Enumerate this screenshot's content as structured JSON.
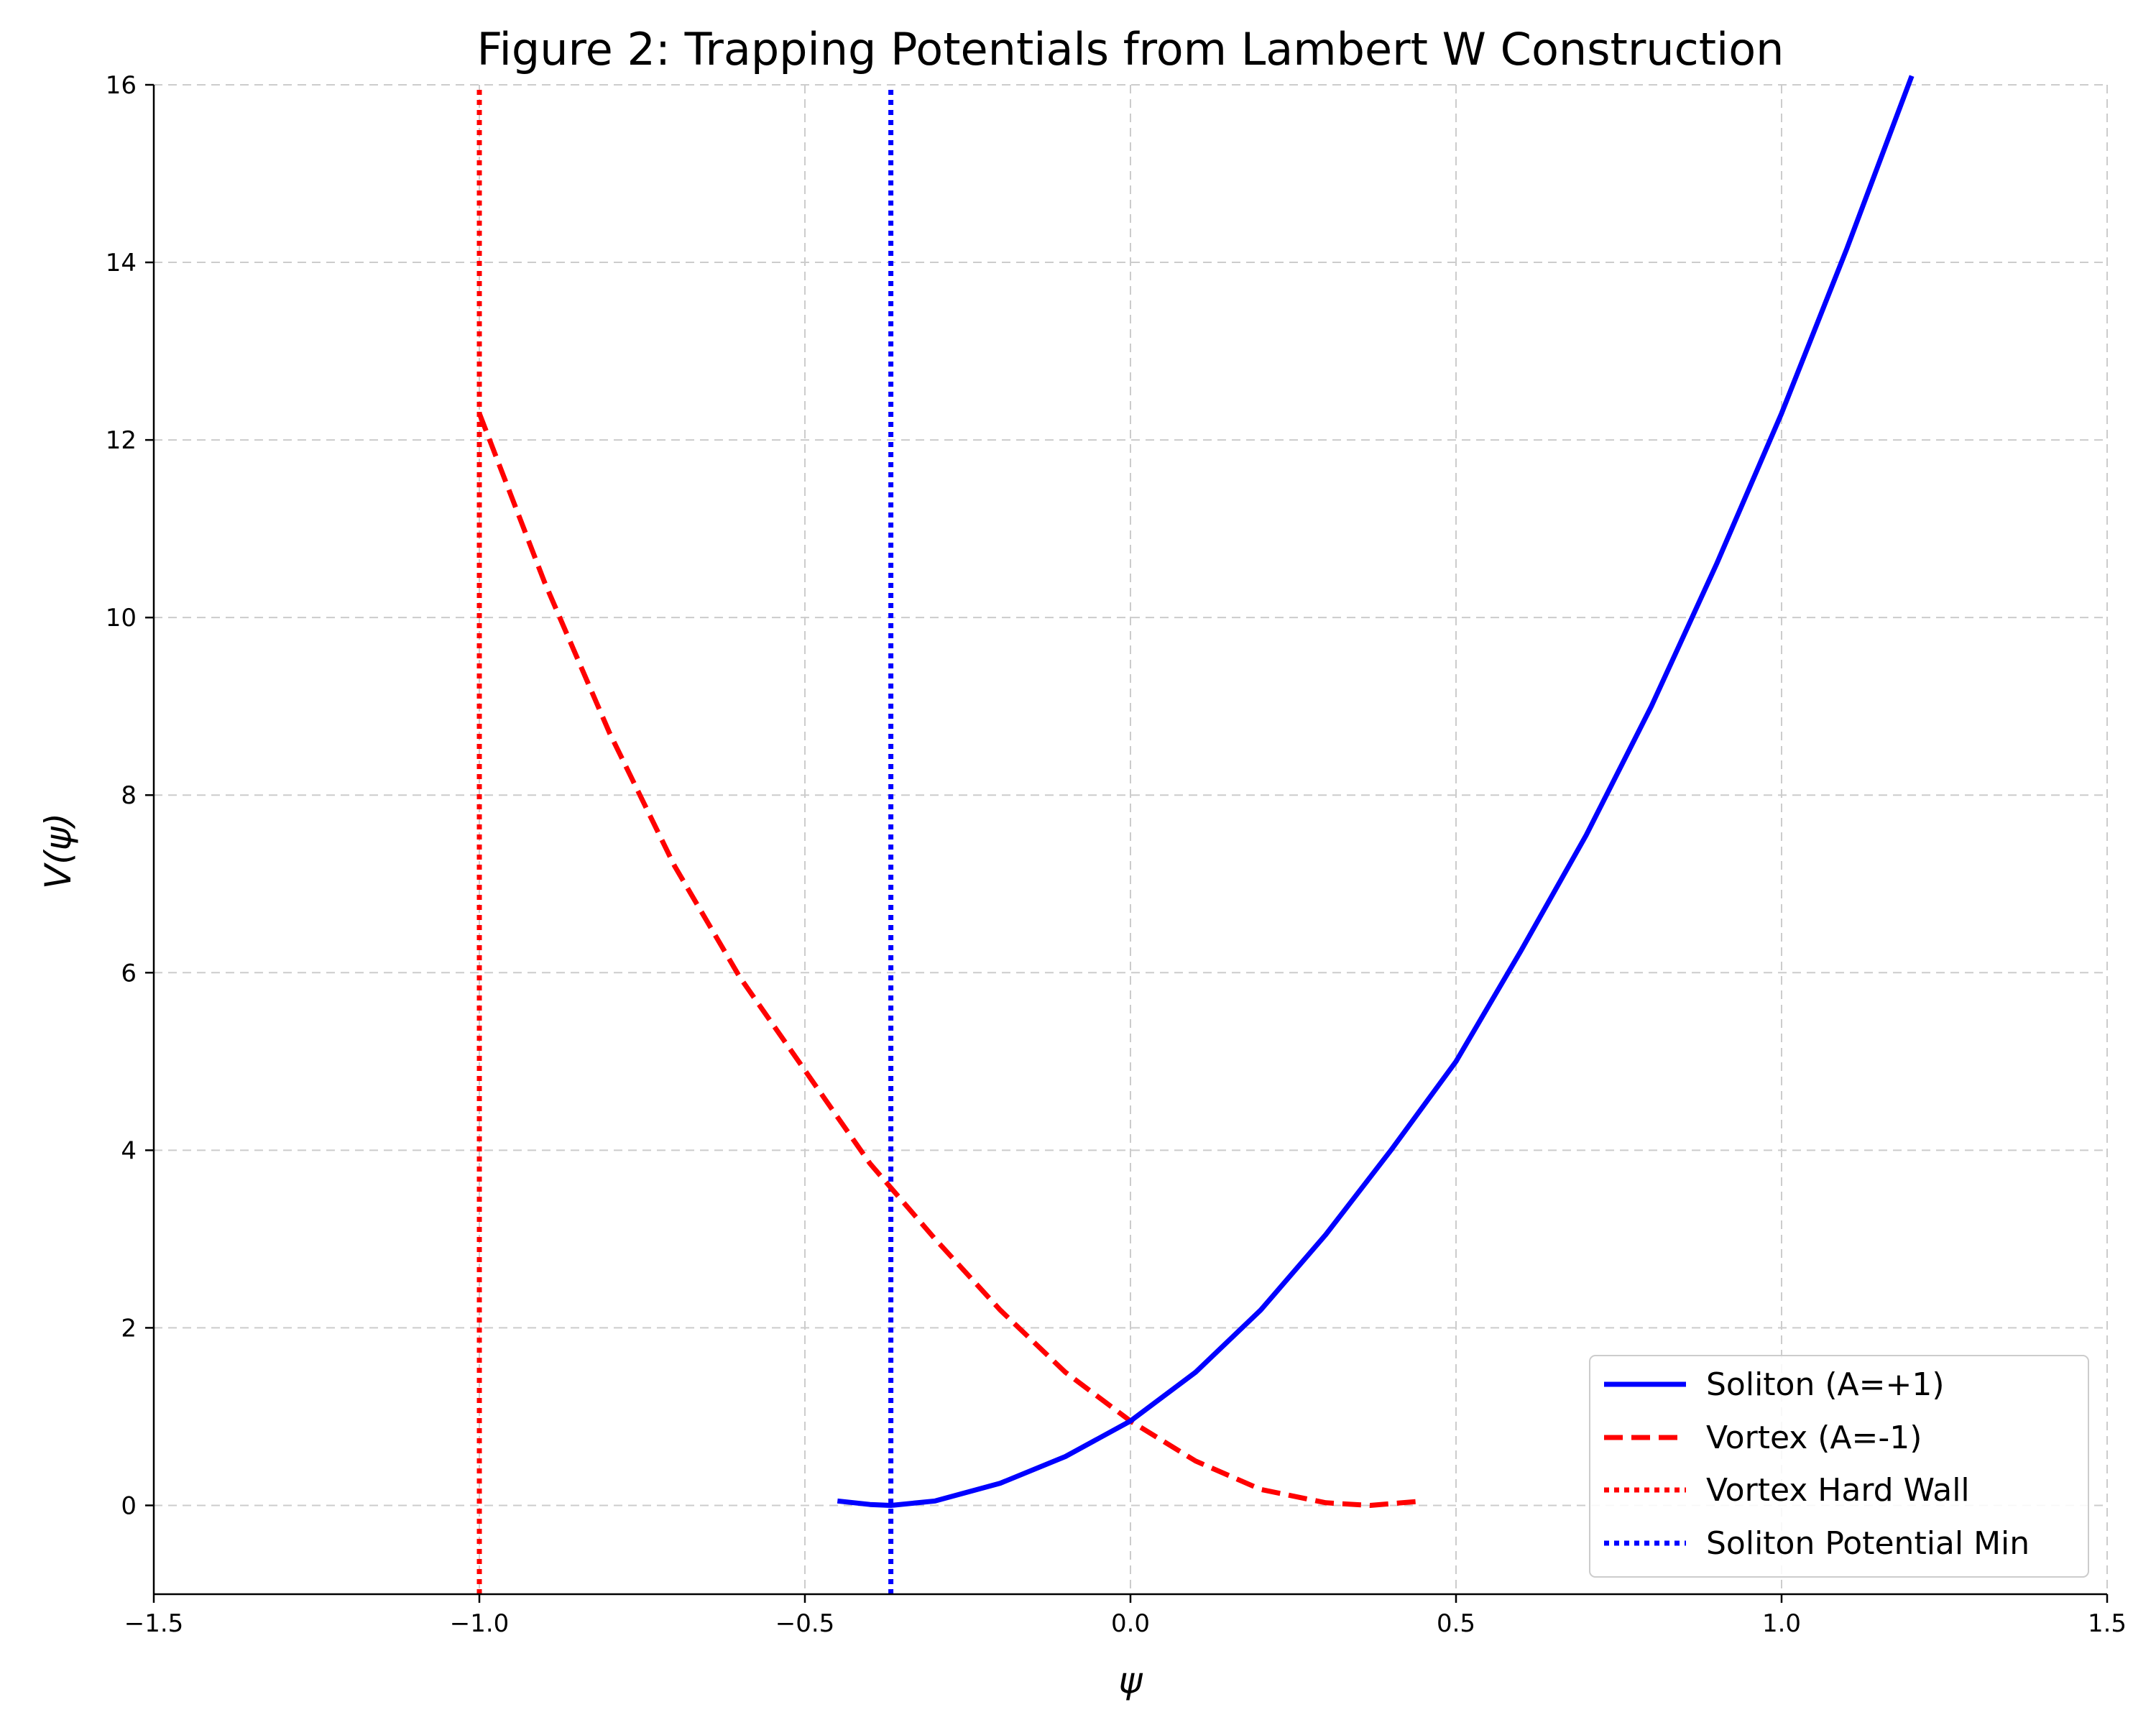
{
  "chart_data": {
    "type": "line",
    "title": "Figure 2: Trapping Potentials from Lambert W Construction",
    "xlabel": "ψ",
    "ylabel": "V(ψ)",
    "xlim": [
      -1.5,
      1.5
    ],
    "ylim": [
      -1,
      16
    ],
    "xticks": [
      -1.5,
      -1.0,
      -0.5,
      0.0,
      0.5,
      1.0,
      1.5
    ],
    "xtick_labels": [
      "−1.5",
      "−1.0",
      "−0.5",
      "0.0",
      "0.5",
      "1.0",
      "1.5"
    ],
    "yticks": [
      0,
      2,
      4,
      6,
      8,
      10,
      12,
      14,
      16
    ],
    "ytick_labels": [
      "0",
      "2",
      "4",
      "6",
      "8",
      "10",
      "12",
      "14",
      "16"
    ],
    "grid": true,
    "legend_position": "lower-right",
    "series": [
      {
        "name": "Soliton (A=+1)",
        "color": "#0000ff",
        "style": "solid",
        "x": [
          -0.45,
          -0.4,
          -0.368,
          -0.3,
          -0.2,
          -0.1,
          0.0,
          0.1,
          0.2,
          0.3,
          0.4,
          0.5,
          0.6,
          0.7,
          0.8,
          0.9,
          1.0,
          1.1,
          1.2
        ],
        "y": [
          0.05,
          0.01,
          0.0,
          0.05,
          0.25,
          0.55,
          0.95,
          1.5,
          2.2,
          3.05,
          4.0,
          5.0,
          6.25,
          7.55,
          9.0,
          10.6,
          12.3,
          14.15,
          16.1
        ]
      },
      {
        "name": "Vortex (A=-1)",
        "color": "#ff0000",
        "style": "dashed",
        "x": [
          -1.0,
          -0.9,
          -0.8,
          -0.7,
          -0.6,
          -0.5,
          -0.4,
          -0.3,
          -0.2,
          -0.1,
          0.0,
          0.1,
          0.2,
          0.3,
          0.368,
          0.45
        ],
        "y": [
          12.3,
          10.4,
          8.7,
          7.2,
          5.95,
          4.9,
          3.85,
          3.0,
          2.2,
          1.5,
          0.95,
          0.5,
          0.18,
          0.03,
          0.0,
          0.05
        ]
      },
      {
        "name": "Vortex Hard Wall",
        "color": "#ff0000",
        "style": "dotted",
        "x": [
          -1.0,
          -1.0
        ],
        "y": [
          -1,
          16
        ]
      },
      {
        "name": "Soliton Potential Min",
        "color": "#0000ff",
        "style": "dotted",
        "x": [
          -0.368,
          -0.368
        ],
        "y": [
          -1,
          16
        ]
      }
    ]
  }
}
